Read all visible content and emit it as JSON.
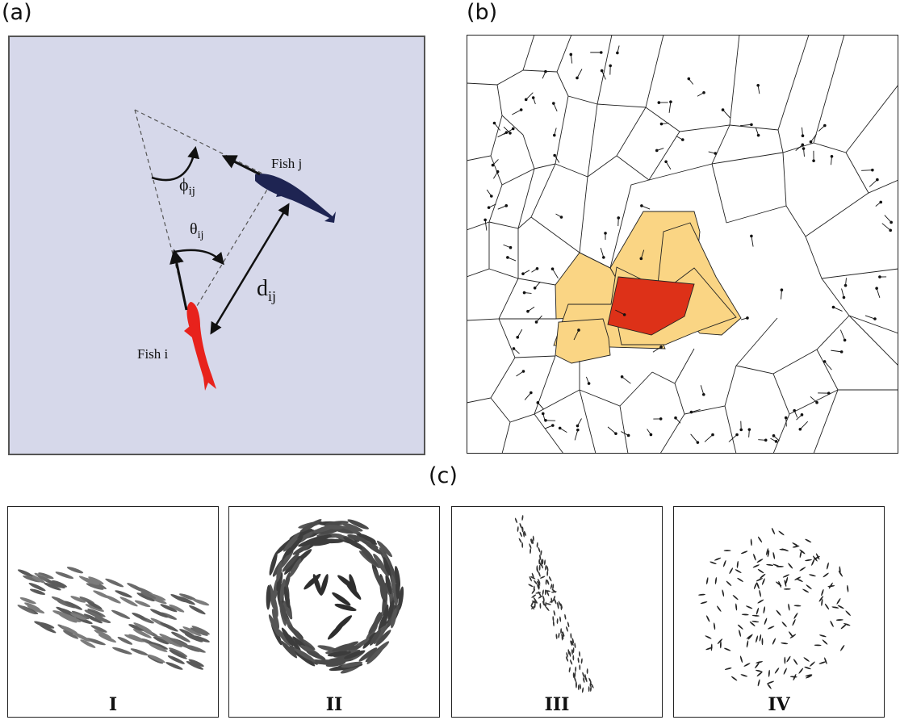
{
  "labels": {
    "a": "(a)",
    "b": "(b)",
    "c": "(c)"
  },
  "panel_a": {
    "fish_i": "Fish i",
    "fish_j": "Fish j",
    "phi": "ϕ",
    "theta": "θ",
    "d": "d",
    "subscript": "ij",
    "colors": {
      "background": "#d6d8ea",
      "fish_i": "#e8221c",
      "fish_j": "#1e2452"
    }
  },
  "panel_b": {
    "colors": {
      "focal": "#dd3118",
      "neighbors": "#fad584",
      "lines": "#222222"
    }
  },
  "panel_c": {
    "panels": [
      {
        "label": "I"
      },
      {
        "label": "II"
      },
      {
        "label": "III"
      },
      {
        "label": "IV"
      }
    ]
  }
}
